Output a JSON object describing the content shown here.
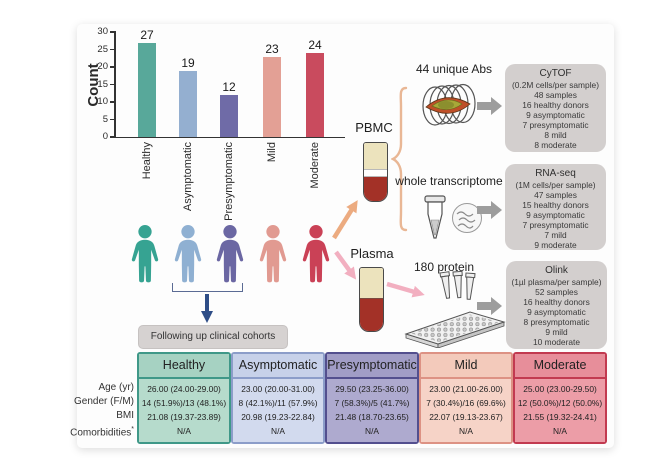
{
  "chart_data": {
    "type": "bar",
    "title": "",
    "xlabel": "",
    "ylabel": "Count",
    "categories": [
      "Healthy",
      "Asymptomatic",
      "Presymptomatic",
      "Mild",
      "Moderate"
    ],
    "values": [
      27,
      19,
      12,
      23,
      24
    ],
    "colors": [
      "#58a89a",
      "#94afd0",
      "#6f6ba7",
      "#e3a095",
      "#c94b5e"
    ],
    "ylim": [
      0,
      30
    ],
    "yticks": [
      0,
      5,
      10,
      15,
      20,
      25,
      30
    ],
    "grid": false,
    "legend": "none"
  },
  "cohort": {
    "person_colors": [
      "#36a392",
      "#8fb0d2",
      "#6b67a3",
      "#e19a91",
      "#ca4156"
    ],
    "person_groups": [
      "Healthy",
      "Asymptomatic",
      "Presymptomatic",
      "Mild",
      "Moderate"
    ],
    "followup_label": "Following up clinical cohorts"
  },
  "samples": {
    "pbmc_label": "PBMC",
    "plasma_label": "Plasma"
  },
  "assays": [
    {
      "annotation": "44 unique Abs",
      "box_title": "CyTOF",
      "box_lines": [
        "(0.2M cells/per sample)",
        "48 samples",
        "16 healthy donors",
        "9 asymptomatic",
        "7 presymptomatic",
        "8 mild",
        "8 moderate"
      ]
    },
    {
      "annotation": "whole transcriptome",
      "box_title": "RNA-seq",
      "box_lines": [
        "(1M cells/per sample)",
        "47 samples",
        "15 healthy donors",
        "9 asymptomatic",
        "7 presymptomatic",
        "7 mild",
        "9 moderate"
      ]
    },
    {
      "annotation": "180 protein",
      "box_title": "Olink",
      "box_lines": [
        "(1µl plasma/per sample)",
        "52 samples",
        "16 healthy donors",
        "9 asymptomatic",
        "8 presymptomatic",
        "9 mild",
        "10 moderate"
      ]
    }
  ],
  "table": {
    "row_labels": [
      "Age (yr)",
      "Gender (F/M)",
      "BMI",
      "Comorbidities"
    ],
    "asterisk": "*",
    "columns": [
      {
        "header": "Healthy",
        "header_bg": "#a6d2c2",
        "body_bg": "#b6dbcc",
        "border": "#3f9888",
        "values": [
          "26.00 (24.00-29.00)",
          "14 (51.9%)/13 (48.1%)",
          "21.08 (19.37-23.89)",
          "N/A"
        ]
      },
      {
        "header": "Asymptomatic",
        "header_bg": "#c7d1e9",
        "body_bg": "#d2daee",
        "border": "#8c9dc9",
        "values": [
          "23.00 (20.00-31.00)",
          "8 (42.1%)/11 (57.9%)",
          "20.98 (19.23-22.84)",
          "N/A"
        ]
      },
      {
        "header": "Presymptomatic",
        "header_bg": "#a19dc6",
        "body_bg": "#aeaacf",
        "border": "#534f8e",
        "values": [
          "29.50 (23.25-36.00)",
          "7 (58.3%)/5 (41.7%)",
          "21.48 (18.70-23.65)",
          "N/A"
        ]
      },
      {
        "header": "Mild",
        "header_bg": "#f3cabb",
        "body_bg": "#f6d3c7",
        "border": "#dd9284",
        "values": [
          "23.00 (21.00-26.00)",
          "7 (30.4%)/16 (69.6%)",
          "22.07 (19.13-23.67)",
          "N/A"
        ]
      },
      {
        "header": "Moderate",
        "header_bg": "#e78e9a",
        "body_bg": "#ec9da7",
        "border": "#c23a50",
        "values": [
          "25.00 (23.00-29.50)",
          "12 (50.0%)/12 (50.0%)",
          "21.55 (19.32-24.41)",
          "N/A"
        ]
      }
    ]
  },
  "icon_colors": {
    "arrow_orange": "#ecab80",
    "arrow_pink": "#f2afc0",
    "arrow_blue": "#2e4d87",
    "arrow_gray": "#9d9d9d",
    "brace": "#e9b795"
  }
}
